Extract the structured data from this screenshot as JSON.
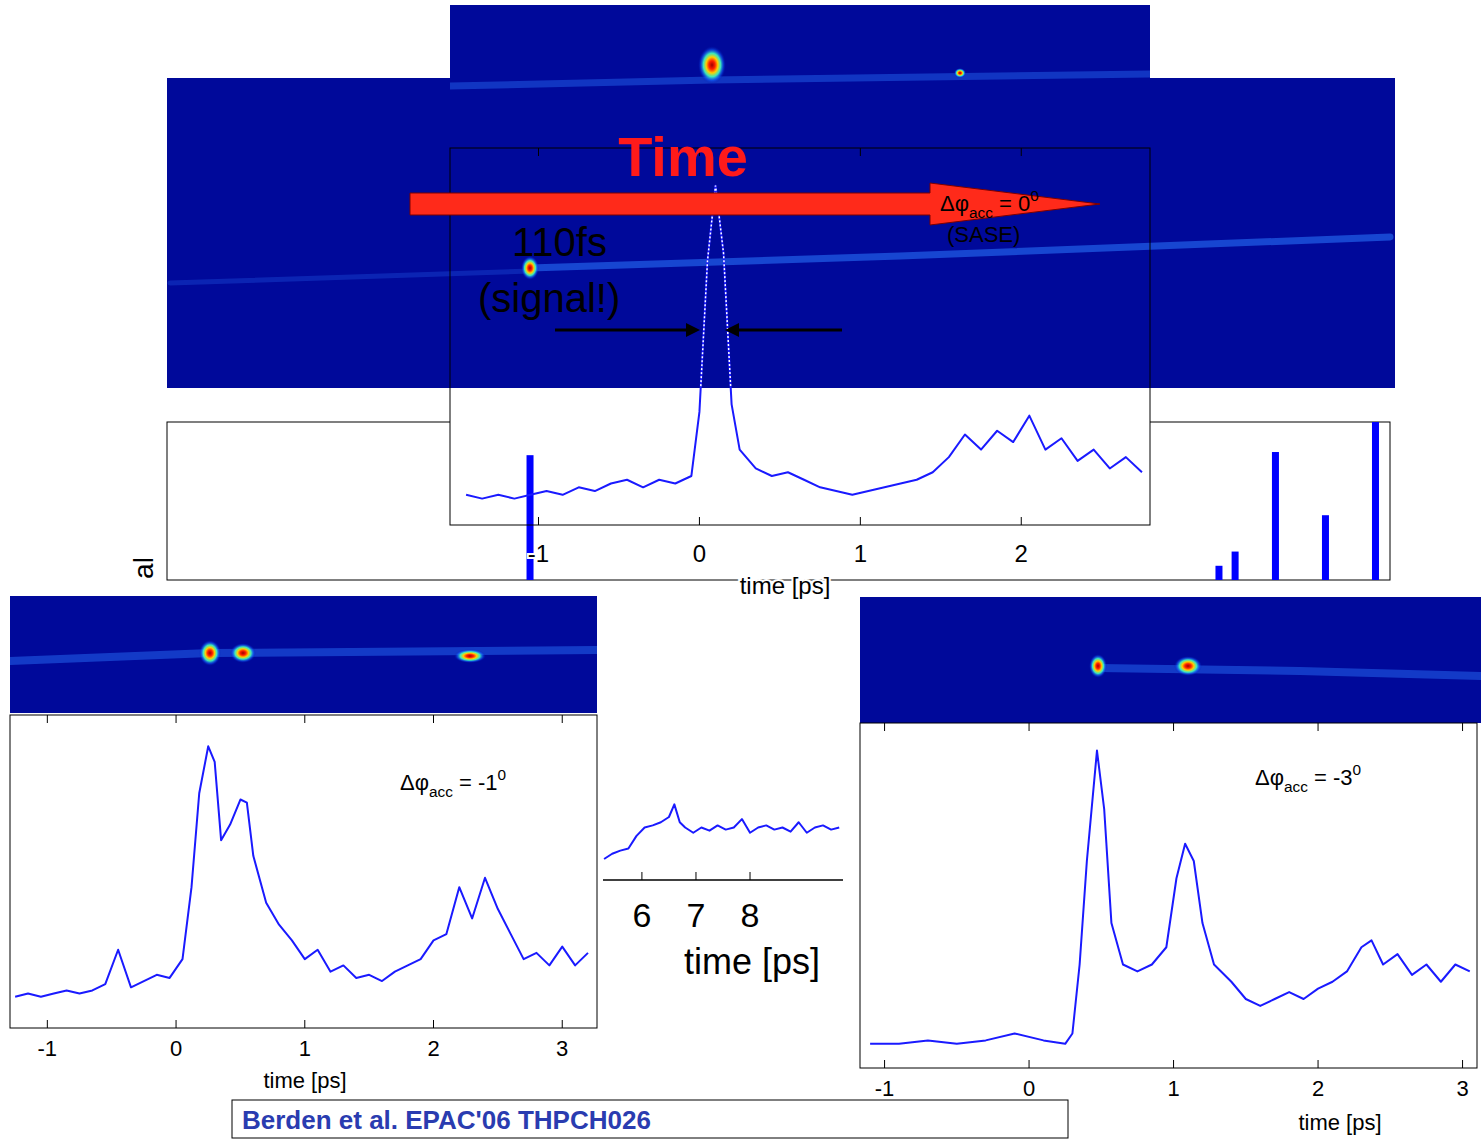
{
  "chart_data": [
    {
      "type": "bar",
      "ylabel": "al",
      "tick_labels": false,
      "color": "#0000ff",
      "x": [
        -1.05,
        3.22,
        3.32,
        3.57,
        3.88,
        4.19
      ],
      "values": [
        0.79,
        0.09,
        0.18,
        0.81,
        0.41,
        1.0
      ],
      "xlim": [
        -3.3,
        4.28
      ],
      "ylim": [
        0,
        1
      ]
    },
    {
      "type": "line",
      "xlabel": "time [ps]",
      "tick_labels": "x",
      "color": "#1a1aff",
      "x": [
        -1.45,
        -1.35,
        -1.25,
        -1.15,
        -1.05,
        -0.95,
        -0.85,
        -0.75,
        -0.65,
        -0.55,
        -0.45,
        -0.35,
        -0.25,
        -0.15,
        -0.05,
        0.0,
        0.05,
        0.1,
        0.15,
        0.2,
        0.25,
        0.35,
        0.45,
        0.55,
        0.65,
        0.75,
        0.85,
        0.95,
        1.05,
        1.15,
        1.25,
        1.35,
        1.45,
        1.55,
        1.65,
        1.75,
        1.85,
        1.95,
        2.05,
        2.15,
        2.25,
        2.35,
        2.45,
        2.55,
        2.65,
        2.75
      ],
      "values": [
        0.08,
        0.07,
        0.08,
        0.07,
        0.08,
        0.09,
        0.08,
        0.1,
        0.09,
        0.11,
        0.12,
        0.1,
        0.12,
        0.11,
        0.13,
        0.3,
        0.7,
        0.9,
        0.72,
        0.32,
        0.2,
        0.15,
        0.13,
        0.14,
        0.12,
        0.1,
        0.09,
        0.08,
        0.09,
        0.1,
        0.11,
        0.12,
        0.14,
        0.18,
        0.24,
        0.2,
        0.25,
        0.22,
        0.29,
        0.2,
        0.23,
        0.17,
        0.2,
        0.15,
        0.18,
        0.14
      ],
      "xlim": [
        -1.55,
        2.8
      ],
      "ylim": [
        0,
        1
      ],
      "xticks": [
        -1,
        0,
        1,
        2
      ],
      "annotations": [
        "Time",
        "110fs",
        "(signal!)",
        "(SASE)"
      ],
      "phase_label": {
        "base": "Δφ",
        "sub": "acc",
        "text": " = 0",
        "sup": "0"
      }
    },
    {
      "type": "line",
      "xlabel": "time [ps]",
      "tick_labels": "x",
      "color": "#1a1aff",
      "x": [
        -1.25,
        -1.15,
        -1.05,
        -0.95,
        -0.85,
        -0.75,
        -0.65,
        -0.55,
        -0.45,
        -0.35,
        -0.25,
        -0.15,
        -0.05,
        0.05,
        0.12,
        0.18,
        0.25,
        0.3,
        0.35,
        0.42,
        0.5,
        0.55,
        0.6,
        0.7,
        0.8,
        0.9,
        1.0,
        1.1,
        1.2,
        1.3,
        1.4,
        1.5,
        1.6,
        1.7,
        1.8,
        1.9,
        2.0,
        2.1,
        2.2,
        2.3,
        2.4,
        2.5,
        2.6,
        2.7,
        2.8,
        2.9,
        3.0,
        3.1,
        3.2
      ],
      "values": [
        0.1,
        0.11,
        0.1,
        0.11,
        0.12,
        0.11,
        0.12,
        0.14,
        0.25,
        0.13,
        0.15,
        0.17,
        0.16,
        0.22,
        0.45,
        0.75,
        0.9,
        0.85,
        0.6,
        0.65,
        0.73,
        0.72,
        0.55,
        0.4,
        0.33,
        0.28,
        0.22,
        0.25,
        0.18,
        0.2,
        0.16,
        0.17,
        0.15,
        0.18,
        0.2,
        0.22,
        0.28,
        0.3,
        0.45,
        0.35,
        0.48,
        0.38,
        0.3,
        0.22,
        0.24,
        0.2,
        0.26,
        0.2,
        0.24
      ],
      "xlim": [
        -1.29,
        3.27
      ],
      "ylim": [
        0,
        1
      ],
      "xticks": [
        -1,
        0,
        1,
        2,
        3
      ],
      "phase_label": {
        "base": "Δφ",
        "sub": "acc",
        "text": " = -1",
        "sup": "0"
      }
    },
    {
      "type": "line",
      "xlabel": "time [ps]",
      "tick_labels": "x",
      "color": "#1a1aff",
      "x": [
        5.3,
        5.45,
        5.6,
        5.75,
        5.9,
        6.05,
        6.2,
        6.35,
        6.5,
        6.6,
        6.7,
        6.8,
        6.95,
        7.1,
        7.25,
        7.4,
        7.55,
        7.7,
        7.85,
        8.0,
        8.15,
        8.3,
        8.45,
        8.6,
        8.75,
        8.9,
        9.05,
        9.2,
        9.35,
        9.5,
        9.65
      ],
      "values": [
        0.2,
        0.25,
        0.28,
        0.3,
        0.42,
        0.5,
        0.52,
        0.55,
        0.6,
        0.72,
        0.55,
        0.5,
        0.45,
        0.5,
        0.47,
        0.52,
        0.48,
        0.5,
        0.58,
        0.45,
        0.5,
        0.52,
        0.48,
        0.5,
        0.46,
        0.55,
        0.45,
        0.5,
        0.52,
        0.48,
        0.5
      ],
      "xlim": [
        5.28,
        9.72
      ],
      "ylim": [
        0,
        1
      ],
      "xticks": [
        6,
        7,
        8
      ]
    },
    {
      "type": "line",
      "xlabel": "time [ps]",
      "tick_labels": "x",
      "color": "#1a1aff",
      "x": [
        -1.1,
        -0.9,
        -0.7,
        -0.5,
        -0.3,
        -0.1,
        0.1,
        0.25,
        0.3,
        0.35,
        0.4,
        0.47,
        0.52,
        0.57,
        0.65,
        0.75,
        0.85,
        0.95,
        1.02,
        1.08,
        1.14,
        1.2,
        1.28,
        1.4,
        1.5,
        1.6,
        1.7,
        1.8,
        1.9,
        2.0,
        2.1,
        2.2,
        2.3,
        2.37,
        2.45,
        2.55,
        2.65,
        2.75,
        2.85,
        2.95,
        3.05
      ],
      "values": [
        0.07,
        0.07,
        0.08,
        0.07,
        0.08,
        0.1,
        0.08,
        0.07,
        0.1,
        0.3,
        0.6,
        0.92,
        0.75,
        0.42,
        0.3,
        0.28,
        0.3,
        0.35,
        0.55,
        0.65,
        0.6,
        0.42,
        0.3,
        0.25,
        0.2,
        0.18,
        0.2,
        0.22,
        0.2,
        0.23,
        0.25,
        0.28,
        0.35,
        0.37,
        0.3,
        0.33,
        0.27,
        0.3,
        0.25,
        0.3,
        0.28
      ],
      "xlim": [
        -1.17,
        3.1
      ],
      "ylim": [
        0,
        1
      ],
      "xticks": [
        -1,
        0,
        1,
        2,
        3
      ],
      "phase_label": {
        "base": "Δφ",
        "sub": "acc",
        "text": " = -3",
        "sup": "0"
      }
    }
  ],
  "citation": "Berden et al. EPAC'06 THPCH026"
}
